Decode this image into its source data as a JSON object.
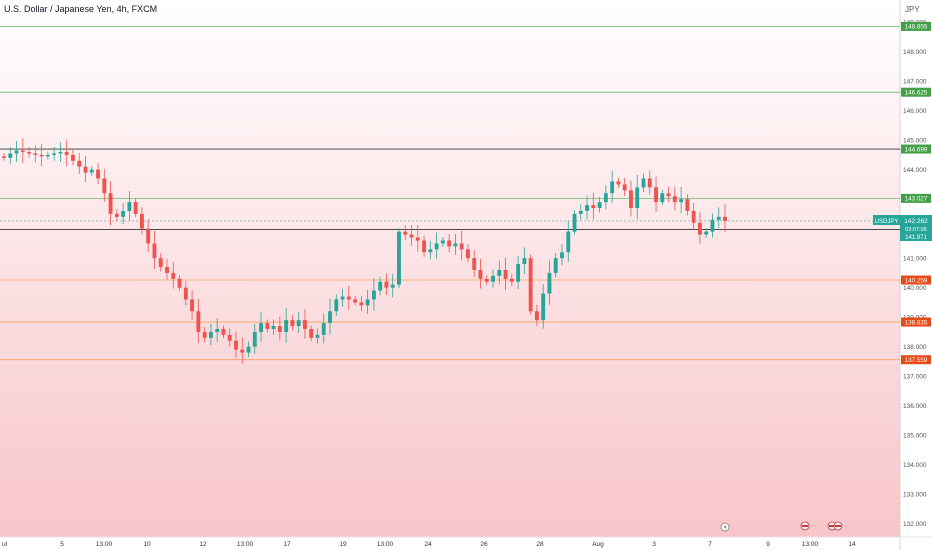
{
  "header": {
    "title": "U.S. Dollar / Japanese Yen, 4h, FXCM",
    "currency": "JPY"
  },
  "price_label": {
    "symbol": "USDJPY",
    "price": "142.262",
    "countdown": "02:07:05",
    "bid": "141.971"
  },
  "colors": {
    "up": "#26a69a",
    "down": "#ef5350",
    "support": "#f7a35c",
    "resistance": "#66bb6a",
    "black_line": "#333333",
    "bg_top": "#ffffff",
    "bg_bottom": "#f7c5c9"
  },
  "chart_data": {
    "type": "candlestick",
    "title": "U.S. Dollar / Japanese Yen, 4h, FXCM",
    "x_tick_labels": [
      "ul",
      "5",
      "13:00",
      "10",
      "12",
      "13:00",
      "17",
      "19",
      "13:00",
      "24",
      "26",
      "28",
      "Aug",
      "3",
      "7",
      "9",
      "13:00",
      "14"
    ],
    "y_ticks": [
      132,
      133,
      134,
      135,
      136,
      137,
      138,
      139,
      140,
      141,
      142,
      143,
      144,
      145,
      146,
      147,
      148,
      149
    ],
    "ylim": [
      131.55,
      149.75
    ],
    "levels": [
      {
        "value": 148.855,
        "label": "148.855",
        "kind": "resistance"
      },
      {
        "value": 146.625,
        "label": "146.625",
        "kind": "resistance"
      },
      {
        "value": 144.699,
        "label": "144.699",
        "kind": "black"
      },
      {
        "value": 143.027,
        "label": "143.027",
        "kind": "resistance"
      },
      {
        "value": 141.971,
        "label": "141.971",
        "kind": "black"
      },
      {
        "value": 140.259,
        "label": "140.259",
        "kind": "support"
      },
      {
        "value": 138.835,
        "label": "138.835",
        "kind": "support"
      },
      {
        "value": 137.559,
        "label": "137.559",
        "kind": "support"
      }
    ],
    "current_price": 142.262,
    "close_path": [
      144.4,
      144.55,
      144.65,
      144.6,
      144.55,
      144.5,
      144.45,
      144.5,
      144.55,
      144.6,
      144.5,
      144.3,
      144.1,
      143.9,
      144.0,
      143.7,
      143.2,
      142.5,
      142.4,
      142.6,
      142.9,
      142.5,
      142.0,
      141.5,
      141.0,
      140.7,
      140.5,
      140.3,
      140.0,
      139.6,
      139.2,
      138.5,
      138.3,
      138.5,
      138.6,
      138.4,
      138.2,
      137.9,
      137.8,
      138.0,
      138.5,
      138.8,
      138.6,
      138.7,
      138.5,
      138.9,
      138.7,
      138.9,
      138.6,
      138.3,
      138.4,
      138.8,
      139.2,
      139.6,
      139.7,
      139.6,
      139.5,
      139.4,
      139.6,
      139.9,
      140.2,
      140.0,
      140.1,
      141.9,
      141.8,
      141.7,
      141.6,
      141.2,
      141.3,
      141.5,
      141.6,
      141.4,
      141.5,
      141.3,
      141.0,
      140.6,
      140.3,
      140.2,
      140.4,
      140.6,
      140.3,
      140.2,
      140.8,
      141.0,
      139.2,
      138.9,
      139.8,
      140.5,
      141.0,
      141.2,
      141.9,
      142.5,
      142.6,
      142.8,
      142.7,
      142.9,
      143.2,
      143.6,
      143.5,
      143.3,
      142.7,
      143.4,
      143.7,
      143.4,
      142.9,
      143.2,
      143.1,
      142.9,
      143.0,
      142.6,
      142.2,
      141.8,
      141.9,
      142.3,
      142.4,
      142.262
    ]
  }
}
